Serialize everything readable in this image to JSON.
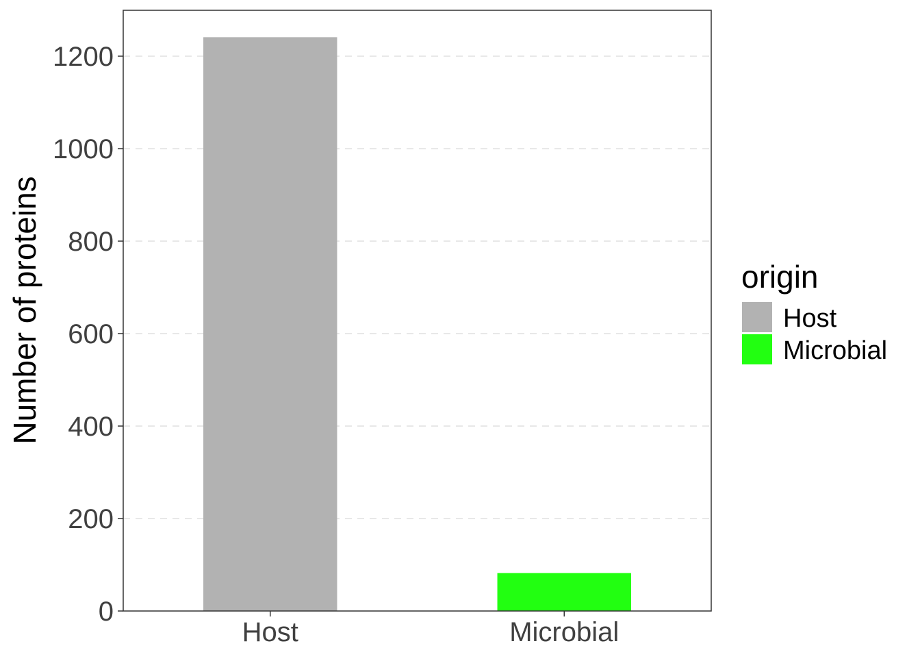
{
  "chart_data": {
    "type": "bar",
    "categories": [
      "Host",
      "Microbial"
    ],
    "values": [
      1241,
      82
    ],
    "colors": [
      "#b2b2b2",
      "#22ff11"
    ],
    "xlabel": "",
    "ylabel": "Number of proteins",
    "ylim": [
      0,
      1300
    ],
    "yticks": [
      0,
      200,
      400,
      600,
      800,
      1000,
      1200
    ],
    "grid": "major y, dashed",
    "legend": {
      "title": "origin",
      "position": "right",
      "entries": [
        {
          "label": "Host",
          "color": "#b2b2b2"
        },
        {
          "label": "Microbial",
          "color": "#22ff11"
        }
      ]
    }
  }
}
